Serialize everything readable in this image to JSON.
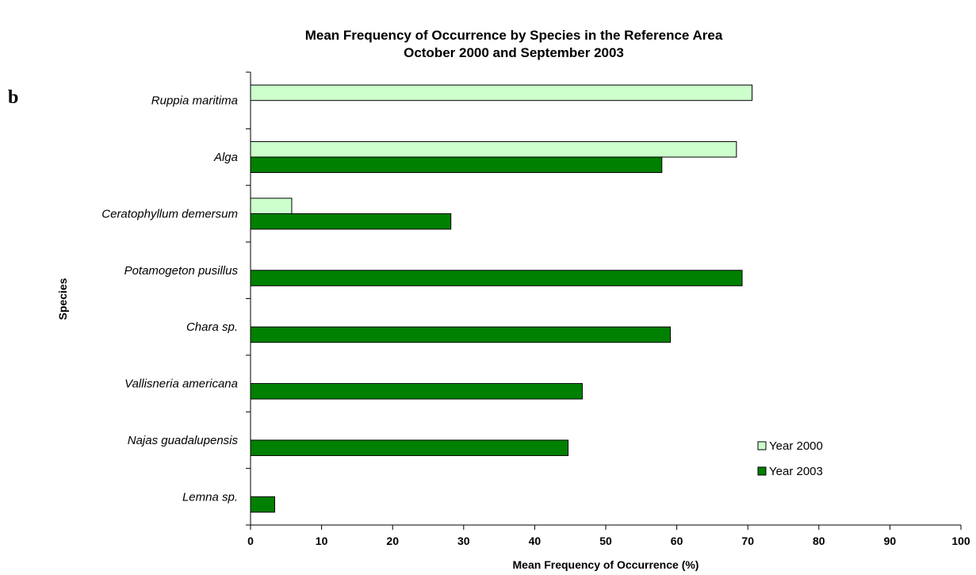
{
  "chart_data": {
    "type": "bar",
    "orientation": "horizontal",
    "title_lines": [
      "Mean Frequency of Occurrence by Species in the Reference Area",
      "October 2000 and September 2003"
    ],
    "panel_label": "b",
    "xlabel": "Mean Frequency of Occurrence (%)",
    "ylabel": "Species",
    "xlim": [
      0,
      100
    ],
    "x_ticks": [
      "0",
      "10",
      "20",
      "30",
      "40",
      "50",
      "60",
      "70",
      "80",
      "90",
      "100"
    ],
    "categories": [
      "Ruppia maritima",
      "Alga",
      "Ceratophyllum demersum",
      "Potamogeton pusillus",
      "Chara sp.",
      "Vallisneria americana",
      "Najas guadalupensis",
      "Lemna sp."
    ],
    "series": [
      {
        "name": "Year 2000",
        "color": "#ccffcc",
        "values": [
          70.6,
          68.4,
          5.8,
          null,
          null,
          null,
          null,
          null
        ]
      },
      {
        "name": "Year 2003",
        "color": "#008000",
        "values": [
          null,
          57.9,
          28.2,
          69.2,
          59.1,
          46.7,
          44.7,
          3.4
        ]
      }
    ],
    "legend_position": "lower-right",
    "grid": false
  }
}
